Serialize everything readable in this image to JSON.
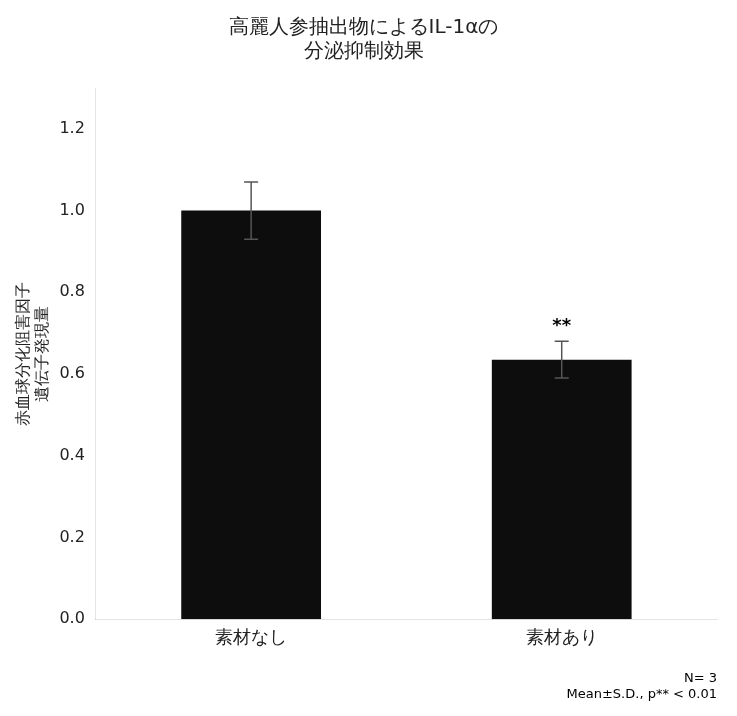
{
  "chart_data": {
    "type": "bar",
    "title": "高麗人参抽出物によるIL-1αの\n分泌抑制効果",
    "ylabel": "赤血球分化阻害因子\n遺伝子発現量",
    "categories": [
      "素材なし",
      "素材あり"
    ],
    "values": [
      1.0,
      0.635
    ],
    "errors": [
      0.07,
      0.045
    ],
    "color": "#0d0d0d",
    "ylim": [
      0,
      1.3
    ],
    "yticks": [
      {
        "value": 0,
        "label": "0.0"
      },
      0.2,
      0.4,
      0.6,
      0.8,
      {
        "value": 1.0,
        "label": "1.0"
      },
      1.2
    ],
    "grid": false,
    "annotations": [
      {
        "text": "**",
        "category": "素材あり"
      },
      {
        "text": "N= 3\nMean±S.D., p** < 0.01"
      }
    ]
  }
}
